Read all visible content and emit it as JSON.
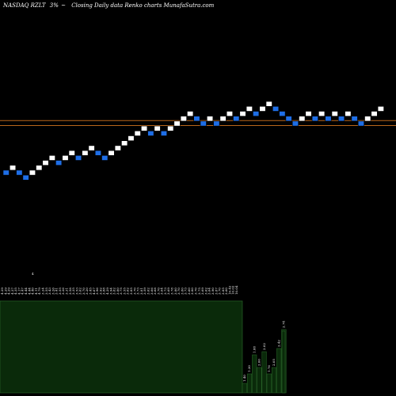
{
  "header": {
    "ticker": "NASDAQ RZLT",
    "change": "3%",
    "change_arrow": "~",
    "title": "Closing Daily data Renko charts MunafaSutra.com"
  },
  "colors": {
    "background": "#000000",
    "up_brick": "#ffffff",
    "down_brick": "#1e6ee6",
    "brick_edge": "#000000",
    "level_line": "#b8661a",
    "volume_fill": "#0a2a0a",
    "volume_edge": "#2b6b2b"
  },
  "chart_data": [
    {
      "type": "renko",
      "title": "",
      "bricks": [
        {
          "i": 0,
          "y": 0,
          "dir": "down"
        },
        {
          "i": 1,
          "y": 1,
          "dir": "up"
        },
        {
          "i": 2,
          "y": 0,
          "dir": "down"
        },
        {
          "i": 3,
          "y": -1,
          "dir": "down"
        },
        {
          "i": 4,
          "y": 0,
          "dir": "up"
        },
        {
          "i": 5,
          "y": 1,
          "dir": "up"
        },
        {
          "i": 6,
          "y": 2,
          "dir": "up"
        },
        {
          "i": 7,
          "y": 3,
          "dir": "up"
        },
        {
          "i": 8,
          "y": 2,
          "dir": "down"
        },
        {
          "i": 9,
          "y": 3,
          "dir": "up"
        },
        {
          "i": 10,
          "y": 4,
          "dir": "up"
        },
        {
          "i": 11,
          "y": 3,
          "dir": "down"
        },
        {
          "i": 12,
          "y": 4,
          "dir": "up"
        },
        {
          "i": 13,
          "y": 5,
          "dir": "up"
        },
        {
          "i": 14,
          "y": 4,
          "dir": "down"
        },
        {
          "i": 15,
          "y": 3,
          "dir": "down"
        },
        {
          "i": 16,
          "y": 4,
          "dir": "up"
        },
        {
          "i": 17,
          "y": 5,
          "dir": "up"
        },
        {
          "i": 18,
          "y": 6,
          "dir": "up"
        },
        {
          "i": 19,
          "y": 7,
          "dir": "up"
        },
        {
          "i": 20,
          "y": 8,
          "dir": "up"
        },
        {
          "i": 21,
          "y": 9,
          "dir": "up"
        },
        {
          "i": 22,
          "y": 8,
          "dir": "down"
        },
        {
          "i": 23,
          "y": 9,
          "dir": "up"
        },
        {
          "i": 24,
          "y": 8,
          "dir": "down"
        },
        {
          "i": 25,
          "y": 9,
          "dir": "up"
        },
        {
          "i": 26,
          "y": 10,
          "dir": "up"
        },
        {
          "i": 27,
          "y": 11,
          "dir": "up"
        },
        {
          "i": 28,
          "y": 12,
          "dir": "up"
        },
        {
          "i": 29,
          "y": 11,
          "dir": "down"
        },
        {
          "i": 30,
          "y": 10,
          "dir": "down"
        },
        {
          "i": 31,
          "y": 11,
          "dir": "up"
        },
        {
          "i": 32,
          "y": 10,
          "dir": "down"
        },
        {
          "i": 33,
          "y": 11,
          "dir": "up"
        },
        {
          "i": 34,
          "y": 12,
          "dir": "up"
        },
        {
          "i": 35,
          "y": 11,
          "dir": "down"
        },
        {
          "i": 36,
          "y": 12,
          "dir": "up"
        },
        {
          "i": 37,
          "y": 13,
          "dir": "up"
        },
        {
          "i": 38,
          "y": 12,
          "dir": "down"
        },
        {
          "i": 39,
          "y": 13,
          "dir": "up"
        },
        {
          "i": 40,
          "y": 14,
          "dir": "up"
        },
        {
          "i": 41,
          "y": 13,
          "dir": "down"
        },
        {
          "i": 42,
          "y": 12,
          "dir": "down"
        },
        {
          "i": 43,
          "y": 11,
          "dir": "down"
        },
        {
          "i": 44,
          "y": 10,
          "dir": "down"
        },
        {
          "i": 45,
          "y": 11,
          "dir": "up"
        },
        {
          "i": 46,
          "y": 12,
          "dir": "up"
        },
        {
          "i": 47,
          "y": 11,
          "dir": "down"
        },
        {
          "i": 48,
          "y": 12,
          "dir": "up"
        },
        {
          "i": 49,
          "y": 11,
          "dir": "down"
        },
        {
          "i": 50,
          "y": 12,
          "dir": "up"
        },
        {
          "i": 51,
          "y": 11,
          "dir": "down"
        },
        {
          "i": 52,
          "y": 12,
          "dir": "up"
        },
        {
          "i": 53,
          "y": 11,
          "dir": "down"
        },
        {
          "i": 54,
          "y": 10,
          "dir": "down"
        },
        {
          "i": 55,
          "y": 11,
          "dir": "up"
        },
        {
          "i": 56,
          "y": 12,
          "dir": "up"
        },
        {
          "i": 57,
          "y": 13,
          "dir": "up"
        }
      ],
      "reference_lines": [
        10.6,
        9.6
      ],
      "price_labels": [
        "4.29",
        "4.29",
        "4.29",
        "4.37",
        "4.35",
        "4.17",
        "4.47",
        "4.44",
        "4.44",
        "4.40",
        "4.11",
        "4.79",
        "3.24",
        "3.55",
        "3.43",
        "3.26",
        "3.41",
        "3.55",
        "3.26",
        "3.31",
        "3.58",
        "3.35",
        "3.53",
        "3.62",
        "3.70",
        "3.20",
        "3.45",
        "4.67",
        "3.96",
        "3.92",
        "3.88",
        "4.29",
        "3.94",
        "3.82",
        "3.80",
        "3.75",
        "3.55",
        "3.62",
        "3.85",
        "3.70",
        "3.73",
        "3.81",
        "3.59",
        "3.62",
        "3.66",
        "3.68",
        "3.70",
        "3.64",
        "3.73",
        "3.69",
        "3.78",
        "3.80",
        "3.70",
        "3.80",
        "3.73",
        "3.60",
        "3.80",
        "3.70",
        "3.75",
        "3.69",
        "3.62",
        "3.64",
        "3.90",
        "3.87",
        "3.70",
        "3.85",
        "3.60",
        "10.42",
        "10.02",
        "10.04"
      ],
      "top_note": "4",
      "volume": {
        "big_block_cols": 50,
        "small_bars": [
          {
            "label": "1.40",
            "value": 0.15
          },
          {
            "label": "1.30",
            "value": 0.3
          },
          {
            "label": "1.88",
            "value": 0.6
          },
          {
            "label": "2.00",
            "value": 0.4
          },
          {
            "label": "2.02",
            "value": 0.65
          },
          {
            "label": "1.76",
            "value": 0.3
          },
          {
            "label": "2.05",
            "value": 0.4
          },
          {
            "label": "2.42",
            "value": 0.7
          },
          {
            "label": "2.74",
            "value": 1.0
          }
        ]
      }
    }
  ]
}
